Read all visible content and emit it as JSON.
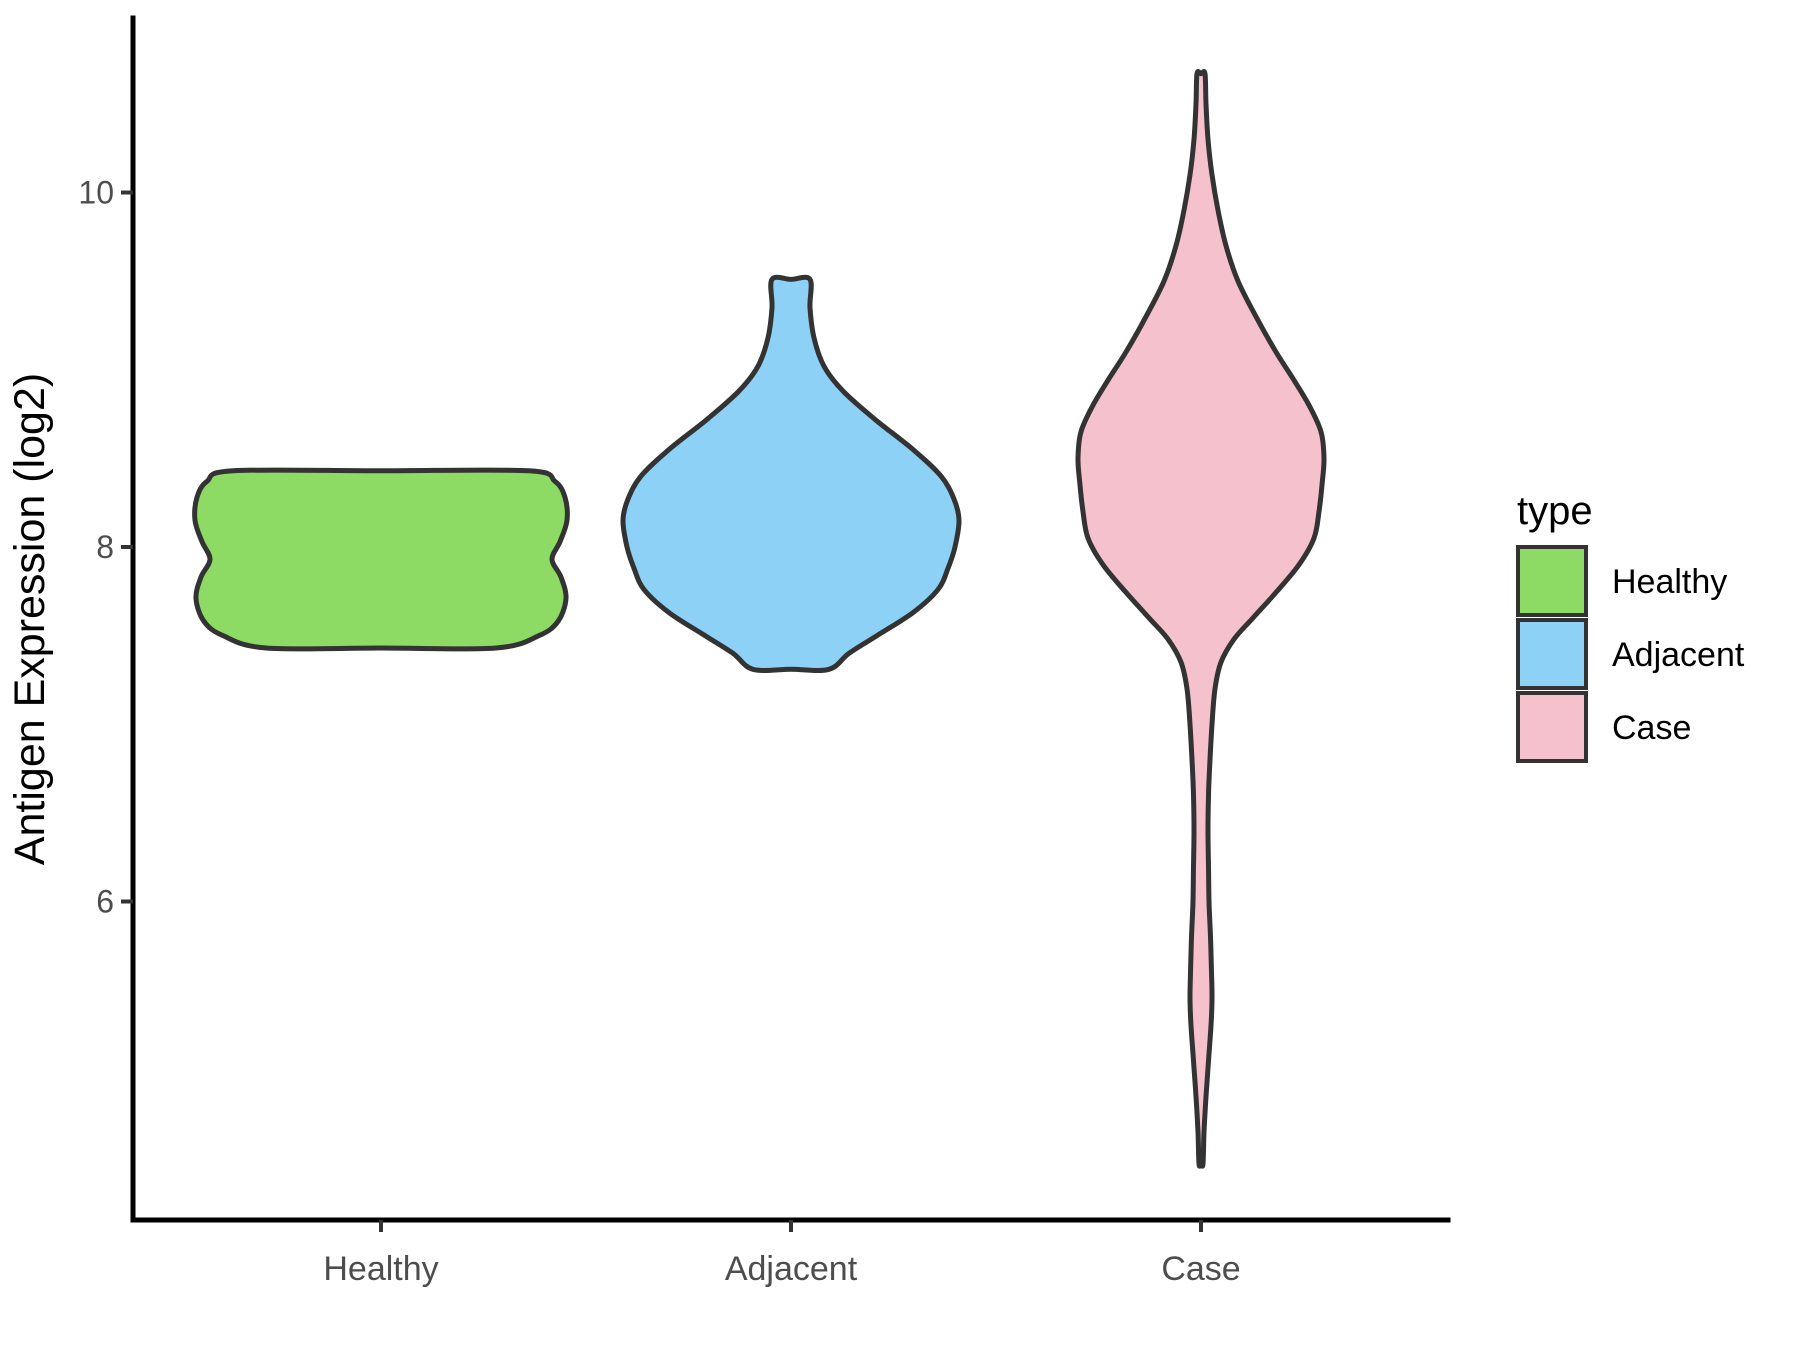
{
  "figure": {
    "background": "#FFFFFF"
  },
  "chart_data": {
    "type": "violin",
    "title": "",
    "xlabel": "",
    "ylabel": "Antigen Expression (log2)",
    "categories": [
      "Healthy",
      "Adjacent",
      "Case"
    ],
    "y_ticks": [
      10,
      8,
      6
    ],
    "ylim": [
      4.2,
      11.0
    ],
    "grid": "off",
    "legend_position": "right",
    "axis_color": "#000000",
    "outline_color": "#333333",
    "tick_label_color": "#4D4D4D",
    "text_color": "#000000",
    "legend": {
      "title": "type",
      "entries": [
        {
          "label": "Healthy",
          "color": "#8DDA65"
        },
        {
          "label": "Adjacent",
          "color": "#8DD1F6"
        },
        {
          "label": "Case",
          "color": "#F5C1CD"
        }
      ]
    },
    "series": [
      {
        "name": "Healthy",
        "fill": "#8DDA65",
        "value_range": [
          7.43,
          8.43
        ],
        "profile_y_halfwidthpx": [
          [
            8.43,
            148
          ],
          [
            8.37,
            174
          ],
          [
            8.28,
            184
          ],
          [
            8.15,
            186
          ],
          [
            8.03,
            179
          ],
          [
            7.93,
            171
          ],
          [
            7.83,
            180
          ],
          [
            7.71,
            185
          ],
          [
            7.58,
            177
          ],
          [
            7.5,
            158
          ],
          [
            7.43,
            115
          ]
        ]
      },
      {
        "name": "Adjacent",
        "fill": "#8DD1F6",
        "value_range": [
          7.31,
          9.51
        ],
        "profile_y_halfwidthpx": [
          [
            9.51,
            19
          ],
          [
            9.35,
            19
          ],
          [
            9.18,
            23
          ],
          [
            9.02,
            33
          ],
          [
            8.88,
            52
          ],
          [
            8.72,
            84
          ],
          [
            8.55,
            122
          ],
          [
            8.4,
            150
          ],
          [
            8.27,
            163
          ],
          [
            8.15,
            168
          ],
          [
            8.0,
            164
          ],
          [
            7.88,
            157
          ],
          [
            7.76,
            147
          ],
          [
            7.63,
            122
          ],
          [
            7.5,
            86
          ],
          [
            7.4,
            58
          ],
          [
            7.31,
            38
          ]
        ]
      },
      {
        "name": "Case",
        "fill": "#F5C1CD",
        "value_range": [
          4.52,
          10.67
        ],
        "profile_y_halfwidthpx": [
          [
            10.67,
            4
          ],
          [
            10.5,
            5
          ],
          [
            10.3,
            7
          ],
          [
            10.1,
            11
          ],
          [
            9.9,
            17
          ],
          [
            9.7,
            25
          ],
          [
            9.5,
            37
          ],
          [
            9.3,
            55
          ],
          [
            9.1,
            75
          ],
          [
            8.95,
            92
          ],
          [
            8.8,
            108
          ],
          [
            8.65,
            120
          ],
          [
            8.5,
            123
          ],
          [
            8.35,
            121
          ],
          [
            8.2,
            118
          ],
          [
            8.05,
            113
          ],
          [
            7.9,
            98
          ],
          [
            7.75,
            76
          ],
          [
            7.6,
            52
          ],
          [
            7.48,
            33
          ],
          [
            7.35,
            20
          ],
          [
            7.2,
            14
          ],
          [
            7.0,
            11
          ],
          [
            6.8,
            9
          ],
          [
            6.6,
            7.5
          ],
          [
            6.4,
            7
          ],
          [
            6.2,
            7.5
          ],
          [
            6.0,
            8
          ],
          [
            5.8,
            9.5
          ],
          [
            5.6,
            10.5
          ],
          [
            5.45,
            11
          ],
          [
            5.3,
            10
          ],
          [
            5.1,
            7.5
          ],
          [
            4.9,
            5
          ],
          [
            4.7,
            3
          ],
          [
            4.52,
            2
          ]
        ]
      }
    ]
  }
}
